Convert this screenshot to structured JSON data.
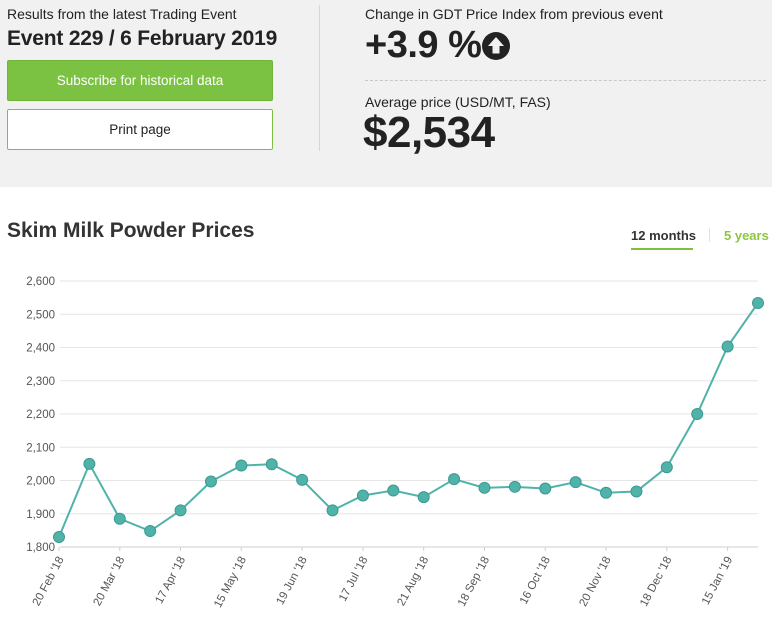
{
  "header": {
    "subtitle": "Results from the latest Trading Event",
    "event_title": "Event 229 / 6 February 2019",
    "subscribe_label": "Subscribe for historical data",
    "print_label": "Print page",
    "change_label": "Change in GDT Price Index from previous event",
    "change_value": "+3.9 %",
    "change_icon": "arrow-up-circle-icon",
    "avg_label": "Average price (USD/MT, FAS)",
    "avg_value": "$2,534"
  },
  "chart_section": {
    "title": "Skim Milk Powder Prices",
    "tabs": [
      {
        "label": "12 months",
        "active": true
      },
      {
        "label": "5 years",
        "active": false
      }
    ]
  },
  "colors": {
    "accent_green": "#7bc243",
    "series_teal": "#4fb3aa",
    "panel_bg": "#f1f1f1"
  },
  "chart_data": {
    "type": "line",
    "title": "Skim Milk Powder Prices",
    "xlabel": "",
    "ylabel": "",
    "ylim": [
      1800,
      2600
    ],
    "yticks": [
      1800,
      1900,
      2000,
      2100,
      2200,
      2300,
      2400,
      2500,
      2600
    ],
    "ytick_labels": [
      "1,800",
      "1,900",
      "2,000",
      "2,100",
      "2,200",
      "2,300",
      "2,400",
      "2,500",
      "2,600"
    ],
    "grid": true,
    "x_tick_labels": [
      "20 Feb '18",
      "20 Mar '18",
      "17 Apr '18",
      "15 May '18",
      "19 Jun '18",
      "17 Jul '18",
      "21 Aug '18",
      "18 Sep '18",
      "16 Oct '18",
      "20 Nov '18",
      "18 Dec '18",
      "15 Jan '19"
    ],
    "x_tick_point_index": [
      0,
      2,
      4,
      6,
      8,
      10,
      12,
      14,
      16,
      18,
      20,
      22
    ],
    "series": [
      {
        "values": [
          1830,
          2050,
          1885,
          1848,
          1910,
          1997,
          2045,
          2049,
          2002,
          1910,
          1955,
          1970,
          1950,
          2004,
          1978,
          1981,
          1976,
          1995,
          1963,
          1967,
          2040,
          2200,
          2403,
          2534
        ]
      }
    ]
  }
}
